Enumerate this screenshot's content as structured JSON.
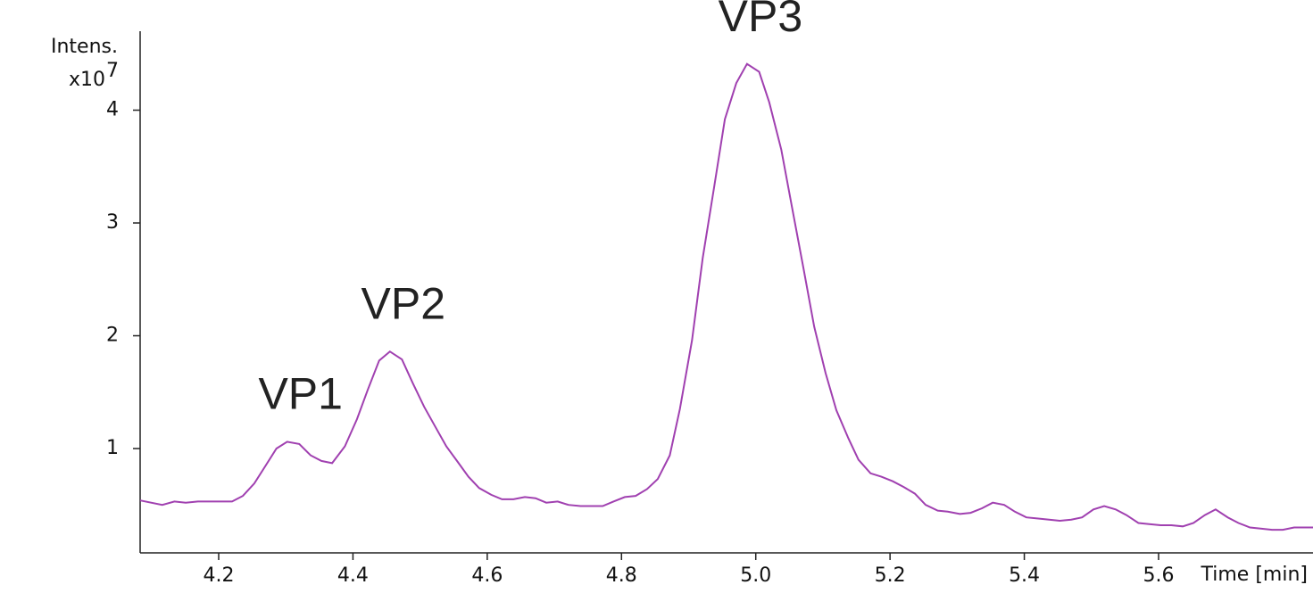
{
  "chart_data": {
    "type": "line",
    "ylabel": "Intens.",
    "yscale_label": "x10",
    "yscale_exponent": "7",
    "xlabel": "Time [min]",
    "xlim": [
      4.083,
      5.83
    ],
    "ylim": [
      0.075,
      4.7
    ],
    "xticks": [
      4.2,
      4.4,
      4.6,
      4.8,
      {
        "value": 5,
        "label": "5.0"
      },
      5.2,
      5.4,
      5.6
    ],
    "yticks": [
      1,
      2,
      3,
      4
    ],
    "x": [
      4.083,
      4.116,
      4.134,
      4.151,
      4.169,
      4.189,
      4.203,
      4.22,
      4.236,
      4.253,
      4.27,
      4.286,
      4.302,
      4.32,
      4.337,
      4.353,
      4.369,
      4.388,
      4.406,
      4.422,
      4.439,
      4.455,
      4.473,
      4.489,
      4.506,
      4.522,
      4.539,
      4.555,
      4.572,
      4.588,
      4.606,
      4.622,
      4.639,
      4.656,
      4.672,
      4.688,
      4.705,
      4.721,
      4.739,
      4.755,
      4.772,
      4.788,
      4.805,
      4.821,
      4.838,
      4.854,
      4.872,
      4.887,
      4.905,
      4.921,
      4.938,
      4.954,
      4.971,
      4.987,
      5.005,
      5.02,
      5.038,
      5.054,
      5.071,
      5.087,
      5.104,
      5.12,
      5.138,
      5.153,
      5.171,
      5.187,
      5.204,
      5.22,
      5.237,
      5.253,
      5.271,
      5.286,
      5.304,
      5.32,
      5.337,
      5.353,
      5.37,
      5.386,
      5.403,
      5.419,
      5.437,
      5.453,
      5.47,
      5.486,
      5.503,
      5.519,
      5.536,
      5.552,
      5.57,
      5.586,
      5.603,
      5.619,
      5.636,
      5.652,
      5.669,
      5.685,
      5.703,
      5.719,
      5.736,
      5.752,
      5.769,
      5.785,
      5.802,
      5.83
    ],
    "series": [
      {
        "color": "#a040b0",
        "values": [
          0.54,
          0.5,
          0.53,
          0.52,
          0.53,
          0.53,
          0.53,
          0.53,
          0.58,
          0.69,
          0.85,
          1.0,
          1.06,
          1.04,
          0.94,
          0.89,
          0.87,
          1.02,
          1.26,
          1.52,
          1.78,
          1.86,
          1.79,
          1.58,
          1.37,
          1.2,
          1.02,
          0.89,
          0.75,
          0.65,
          0.59,
          0.55,
          0.55,
          0.57,
          0.56,
          0.52,
          0.53,
          0.5,
          0.49,
          0.49,
          0.49,
          0.53,
          0.57,
          0.58,
          0.64,
          0.73,
          0.94,
          1.35,
          1.96,
          2.69,
          3.32,
          3.92,
          4.24,
          4.41,
          4.34,
          4.07,
          3.65,
          3.14,
          2.6,
          2.08,
          1.67,
          1.34,
          1.09,
          0.9,
          0.78,
          0.75,
          0.71,
          0.66,
          0.6,
          0.5,
          0.45,
          0.44,
          0.42,
          0.43,
          0.47,
          0.52,
          0.5,
          0.44,
          0.39,
          0.38,
          0.37,
          0.36,
          0.37,
          0.39,
          0.46,
          0.49,
          0.46,
          0.41,
          0.34,
          0.33,
          0.32,
          0.32,
          0.31,
          0.34,
          0.41,
          0.46,
          0.39,
          0.34,
          0.3,
          0.29,
          0.28,
          0.28,
          0.3,
          0.3
        ]
      }
    ],
    "annotations": [
      {
        "text": "VP1",
        "x": 4.302
      },
      {
        "text": "VP2",
        "x": 4.455
      },
      {
        "text": "VP3",
        "x": 4.987
      }
    ]
  }
}
